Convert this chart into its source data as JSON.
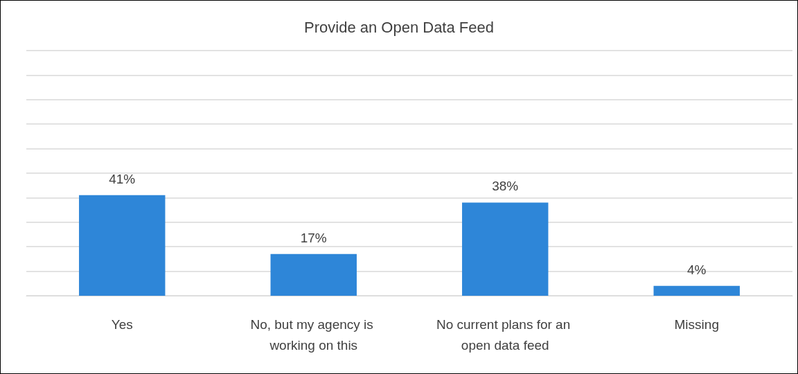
{
  "chart_data": {
    "type": "bar",
    "title": "Provide an Open Data Feed",
    "categories": [
      "Yes",
      "No, but my agency is working on this",
      "No current plans for an open data feed",
      "Missing"
    ],
    "values": [
      41,
      17,
      38,
      4
    ],
    "color": "#2e86d8",
    "data_labels": true,
    "value_labels": [
      "41%",
      "17%",
      "38%",
      "4%"
    ],
    "ylim": [
      0,
      100
    ],
    "yticks": [
      0,
      10,
      20,
      30,
      40,
      50,
      60,
      70,
      80,
      90,
      100
    ],
    "grid": "y",
    "tick_labels": "x"
  }
}
